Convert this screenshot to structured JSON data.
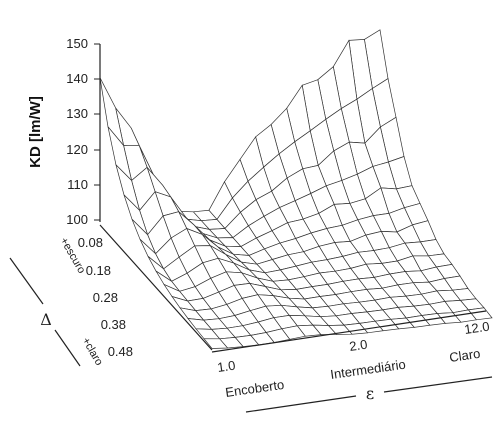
{
  "chart_data": {
    "type": "surface",
    "z_label": "KD [lm/W]",
    "z_ticks": [
      "150",
      "140",
      "130",
      "120",
      "110",
      "100"
    ],
    "zlim": [
      100,
      150
    ],
    "x_axis": {
      "symbol": "ε",
      "ticks": [
        "1.0",
        "2.0",
        "12.0"
      ],
      "categories": [
        "Encoberto",
        "Intermediário",
        "Claro"
      ]
    },
    "y_axis": {
      "symbol": "Δ",
      "ticks": [
        "0.08",
        "0.18",
        "0.28",
        "0.38",
        "0.48"
      ],
      "end_labels": [
        "+escuro",
        "+claro"
      ]
    },
    "grid": {
      "nx": 18,
      "ny": 14
    },
    "surface_features": [
      {
        "region": "ε=1.0, Δ≈0.08",
        "kd_peak": 142
      },
      {
        "region": "ε≈2–12, Δ≈0.08",
        "kd_peak": 152
      },
      {
        "region": "ε≈1–2, Δ≥0.28",
        "kd": 100
      }
    ]
  }
}
